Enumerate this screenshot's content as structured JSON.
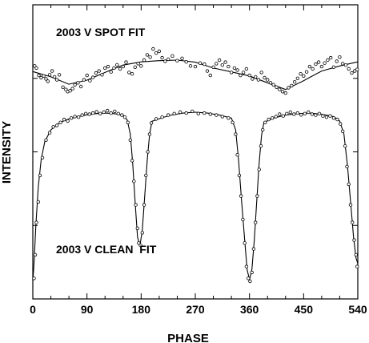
{
  "chart_data": {
    "type": "scatter",
    "xlabel": "PHASE",
    "ylabel": "INTENSITY",
    "xlim": [
      0,
      540
    ],
    "ylim": [
      0,
      1
    ],
    "x_ticks": [
      0,
      90,
      180,
      270,
      360,
      450,
      540
    ],
    "x_tick_labels": [
      "0",
      "90",
      "180",
      "270",
      "360",
      "450",
      "540"
    ],
    "grid": false,
    "legend": "none",
    "annotations": [
      "2003 V SPOT FIT",
      "2003 V CLEAN  FIT"
    ],
    "series": [
      {
        "label_ref": 0,
        "fit": [
          [
            0,
            0.773
          ],
          [
            30,
            0.755
          ],
          [
            60,
            0.73
          ],
          [
            90,
            0.744
          ],
          [
            120,
            0.77
          ],
          [
            150,
            0.795
          ],
          [
            180,
            0.806
          ],
          [
            210,
            0.81
          ],
          [
            240,
            0.812
          ],
          [
            270,
            0.805
          ],
          [
            300,
            0.785
          ],
          [
            330,
            0.772
          ],
          [
            360,
            0.758
          ],
          [
            390,
            0.735
          ],
          [
            420,
            0.712
          ],
          [
            450,
            0.742
          ],
          [
            480,
            0.775
          ],
          [
            510,
            0.792
          ],
          [
            540,
            0.806
          ]
        ],
        "points": [
          [
            3,
            0.792
          ],
          [
            6,
            0.785
          ],
          [
            10,
            0.76
          ],
          [
            14,
            0.752
          ],
          [
            18,
            0.758
          ],
          [
            22,
            0.748
          ],
          [
            25,
            0.74
          ],
          [
            28,
            0.762
          ],
          [
            32,
            0.775
          ],
          [
            36,
            0.755
          ],
          [
            40,
            0.745
          ],
          [
            44,
            0.762
          ],
          [
            50,
            0.72
          ],
          [
            55,
            0.712
          ],
          [
            58,
            0.705
          ],
          [
            62,
            0.708
          ],
          [
            66,
            0.715
          ],
          [
            70,
            0.728
          ],
          [
            75,
            0.735
          ],
          [
            80,
            0.722
          ],
          [
            85,
            0.745
          ],
          [
            90,
            0.76
          ],
          [
            95,
            0.742
          ],
          [
            100,
            0.753
          ],
          [
            105,
            0.768
          ],
          [
            110,
            0.775
          ],
          [
            115,
            0.762
          ],
          [
            120,
            0.785
          ],
          [
            125,
            0.79
          ],
          [
            130,
            0.772
          ],
          [
            135,
            0.785
          ],
          [
            140,
            0.796
          ],
          [
            145,
            0.782
          ],
          [
            150,
            0.79
          ],
          [
            155,
            0.805
          ],
          [
            160,
            0.77
          ],
          [
            165,
            0.765
          ],
          [
            170,
            0.788
          ],
          [
            175,
            0.8
          ],
          [
            180,
            0.792
          ],
          [
            185,
            0.812
          ],
          [
            190,
            0.83
          ],
          [
            195,
            0.822
          ],
          [
            200,
            0.85
          ],
          [
            205,
            0.836
          ],
          [
            210,
            0.842
          ],
          [
            215,
            0.82
          ],
          [
            220,
            0.808
          ],
          [
            225,
            0.815
          ],
          [
            232,
            0.826
          ],
          [
            240,
            0.81
          ],
          [
            248,
            0.818
          ],
          [
            255,
            0.806
          ],
          [
            262,
            0.792
          ],
          [
            270,
            0.79
          ],
          [
            278,
            0.802
          ],
          [
            285,
            0.798
          ],
          [
            290,
            0.775
          ],
          [
            295,
            0.76
          ],
          [
            300,
            0.788
          ],
          [
            305,
            0.8
          ],
          [
            310,
            0.812
          ],
          [
            315,
            0.795
          ],
          [
            320,
            0.805
          ],
          [
            325,
            0.79
          ],
          [
            330,
            0.77
          ],
          [
            335,
            0.785
          ],
          [
            340,
            0.778
          ],
          [
            345,
            0.76
          ],
          [
            350,
            0.77
          ],
          [
            355,
            0.782
          ],
          [
            360,
            0.76
          ],
          [
            365,
            0.748
          ],
          [
            370,
            0.755
          ],
          [
            375,
            0.745
          ],
          [
            380,
            0.77
          ],
          [
            385,
            0.752
          ],
          [
            390,
            0.745
          ],
          [
            395,
            0.735
          ],
          [
            400,
            0.728
          ],
          [
            405,
            0.72
          ],
          [
            410,
            0.712
          ],
          [
            415,
            0.705
          ],
          [
            420,
            0.7
          ],
          [
            425,
            0.718
          ],
          [
            430,
            0.725
          ],
          [
            435,
            0.738
          ],
          [
            440,
            0.75
          ],
          [
            445,
            0.765
          ],
          [
            450,
            0.758
          ],
          [
            455,
            0.772
          ],
          [
            460,
            0.79
          ],
          [
            465,
            0.782
          ],
          [
            470,
            0.798
          ],
          [
            475,
            0.805
          ],
          [
            480,
            0.79
          ],
          [
            485,
            0.802
          ],
          [
            490,
            0.812
          ],
          [
            495,
            0.82
          ],
          [
            500,
            0.788
          ],
          [
            505,
            0.808
          ],
          [
            510,
            0.822
          ],
          [
            515,
            0.8
          ],
          [
            520,
            0.795
          ],
          [
            525,
            0.782
          ],
          [
            530,
            0.768
          ],
          [
            535,
            0.775
          ],
          [
            539,
            0.78
          ]
        ]
      },
      {
        "label_ref": 1,
        "fit": [
          [
            0,
            0.06
          ],
          [
            2,
            0.12
          ],
          [
            5,
            0.25
          ],
          [
            9,
            0.38
          ],
          [
            14,
            0.475
          ],
          [
            20,
            0.535
          ],
          [
            30,
            0.575
          ],
          [
            45,
            0.6
          ],
          [
            60,
            0.612
          ],
          [
            75,
            0.62
          ],
          [
            90,
            0.626
          ],
          [
            105,
            0.63
          ],
          [
            120,
            0.632
          ],
          [
            135,
            0.63
          ],
          [
            150,
            0.625
          ],
          [
            157,
            0.608
          ],
          [
            162,
            0.56
          ],
          [
            166,
            0.46
          ],
          [
            170,
            0.33
          ],
          [
            174,
            0.21
          ],
          [
            178,
            0.18
          ],
          [
            182,
            0.235
          ],
          [
            186,
            0.35
          ],
          [
            190,
            0.47
          ],
          [
            194,
            0.56
          ],
          [
            198,
            0.604
          ],
          [
            215,
            0.616
          ],
          [
            230,
            0.625
          ],
          [
            250,
            0.632
          ],
          [
            270,
            0.635
          ],
          [
            290,
            0.632
          ],
          [
            310,
            0.625
          ],
          [
            330,
            0.615
          ],
          [
            337,
            0.575
          ],
          [
            342,
            0.47
          ],
          [
            347,
            0.33
          ],
          [
            352,
            0.2
          ],
          [
            356,
            0.1
          ],
          [
            360,
            0.065
          ],
          [
            364,
            0.1
          ],
          [
            368,
            0.2
          ],
          [
            372,
            0.33
          ],
          [
            376,
            0.46
          ],
          [
            380,
            0.555
          ],
          [
            384,
            0.6
          ],
          [
            400,
            0.615
          ],
          [
            420,
            0.625
          ],
          [
            440,
            0.63
          ],
          [
            460,
            0.632
          ],
          [
            480,
            0.628
          ],
          [
            500,
            0.62
          ],
          [
            510,
            0.605
          ],
          [
            517,
            0.56
          ],
          [
            523,
            0.45
          ],
          [
            528,
            0.33
          ],
          [
            533,
            0.21
          ],
          [
            537,
            0.14
          ],
          [
            540,
            0.12
          ]
        ],
        "points": [
          [
            2,
            0.07
          ],
          [
            4,
            0.15
          ],
          [
            6,
            0.26
          ],
          [
            9,
            0.33
          ],
          [
            12,
            0.42
          ],
          [
            16,
            0.48
          ],
          [
            22,
            0.54
          ],
          [
            28,
            0.565
          ],
          [
            34,
            0.585
          ],
          [
            40,
            0.59
          ],
          [
            46,
            0.6
          ],
          [
            52,
            0.61
          ],
          [
            58,
            0.605
          ],
          [
            64,
            0.615
          ],
          [
            70,
            0.62
          ],
          [
            76,
            0.618
          ],
          [
            82,
            0.625
          ],
          [
            88,
            0.63
          ],
          [
            94,
            0.628
          ],
          [
            100,
            0.632
          ],
          [
            106,
            0.636
          ],
          [
            112,
            0.63
          ],
          [
            118,
            0.635
          ],
          [
            124,
            0.64
          ],
          [
            130,
            0.632
          ],
          [
            136,
            0.638
          ],
          [
            142,
            0.63
          ],
          [
            148,
            0.625
          ],
          [
            153,
            0.618
          ],
          [
            158,
            0.6
          ],
          [
            162,
            0.54
          ],
          [
            165,
            0.47
          ],
          [
            168,
            0.4
          ],
          [
            171,
            0.32
          ],
          [
            174,
            0.24
          ],
          [
            176,
            0.19
          ],
          [
            179,
            0.182
          ],
          [
            182,
            0.225
          ],
          [
            185,
            0.32
          ],
          [
            188,
            0.42
          ],
          [
            191,
            0.5
          ],
          [
            194,
            0.56
          ],
          [
            197,
            0.598
          ],
          [
            205,
            0.612
          ],
          [
            215,
            0.618
          ],
          [
            225,
            0.625
          ],
          [
            235,
            0.63
          ],
          [
            245,
            0.635
          ],
          [
            255,
            0.632
          ],
          [
            265,
            0.638
          ],
          [
            275,
            0.63
          ],
          [
            285,
            0.632
          ],
          [
            295,
            0.628
          ],
          [
            305,
            0.625
          ],
          [
            315,
            0.62
          ],
          [
            325,
            0.615
          ],
          [
            332,
            0.6
          ],
          [
            337,
            0.56
          ],
          [
            340,
            0.49
          ],
          [
            343,
            0.42
          ],
          [
            346,
            0.35
          ],
          [
            349,
            0.27
          ],
          [
            352,
            0.19
          ],
          [
            355,
            0.11
          ],
          [
            358,
            0.07
          ],
          [
            361,
            0.06
          ],
          [
            364,
            0.09
          ],
          [
            367,
            0.17
          ],
          [
            370,
            0.26
          ],
          [
            373,
            0.35
          ],
          [
            376,
            0.44
          ],
          [
            379,
            0.52
          ],
          [
            382,
            0.575
          ],
          [
            386,
            0.6
          ],
          [
            392,
            0.61
          ],
          [
            398,
            0.615
          ],
          [
            404,
            0.62
          ],
          [
            410,
            0.628
          ],
          [
            416,
            0.622
          ],
          [
            422,
            0.63
          ],
          [
            428,
            0.635
          ],
          [
            434,
            0.628
          ],
          [
            440,
            0.632
          ],
          [
            446,
            0.626
          ],
          [
            452,
            0.63
          ],
          [
            458,
            0.635
          ],
          [
            464,
            0.628
          ],
          [
            470,
            0.625
          ],
          [
            476,
            0.63
          ],
          [
            482,
            0.622
          ],
          [
            488,
            0.618
          ],
          [
            494,
            0.622
          ],
          [
            500,
            0.615
          ],
          [
            506,
            0.61
          ],
          [
            511,
            0.595
          ],
          [
            515,
            0.57
          ],
          [
            519,
            0.52
          ],
          [
            522,
            0.45
          ],
          [
            525,
            0.39
          ],
          [
            528,
            0.32
          ],
          [
            531,
            0.26
          ],
          [
            534,
            0.2
          ],
          [
            537,
            0.15
          ],
          [
            539,
            0.11
          ]
        ]
      }
    ]
  }
}
